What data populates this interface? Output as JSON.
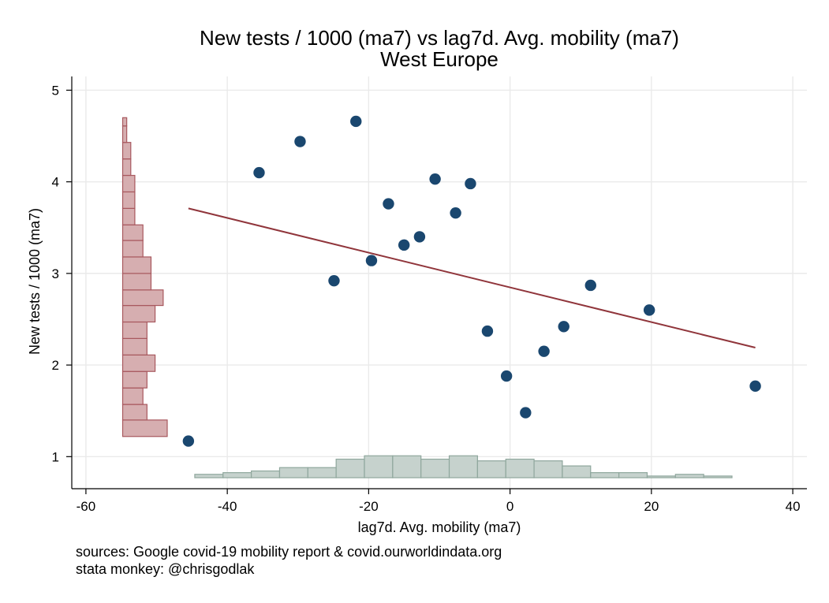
{
  "chart_data": {
    "type": "scatter",
    "title": "New tests / 1000 (ma7) vs lag7d. Avg. mobility (ma7)",
    "subtitle": "West Europe",
    "xlabel": "lag7d. Avg. mobility (ma7)",
    "ylabel": "New tests / 1000 (ma7)",
    "xlim": [
      -62,
      42
    ],
    "ylim": [
      0.65,
      5.15
    ],
    "xticks": [
      -60,
      -40,
      -20,
      0,
      20,
      40
    ],
    "yticks": [
      1,
      2,
      3,
      4,
      5
    ],
    "grid": true,
    "legend": "none",
    "points": {
      "x": [
        -45.5,
        -35.5,
        -29.7,
        -24.9,
        -21.8,
        -19.6,
        -17.2,
        -15.0,
        -12.8,
        -10.6,
        -7.7,
        -5.6,
        -3.2,
        -0.5,
        2.2,
        4.8,
        7.6,
        11.4,
        19.7,
        34.7
      ],
      "y": [
        1.17,
        4.1,
        4.44,
        2.92,
        4.66,
        3.14,
        3.76,
        3.31,
        3.4,
        4.03,
        3.66,
        3.98,
        2.37,
        1.88,
        1.48,
        2.15,
        2.42,
        2.87,
        2.6,
        1.77
      ]
    },
    "fit_line": {
      "x": [
        -45.5,
        34.7
      ],
      "y": [
        3.71,
        2.19
      ]
    },
    "x_histogram": {
      "bin_edges": [
        -44.6,
        -40.6,
        -36.6,
        -32.6,
        -28.6,
        -24.6,
        -20.6,
        -16.6,
        -12.6,
        -8.6,
        -4.6,
        -0.6,
        3.4,
        7.4,
        11.4,
        15.4,
        19.4,
        23.4,
        27.4,
        31.4
      ],
      "heights": [
        2,
        3,
        4,
        6,
        6,
        11,
        13,
        13,
        11,
        13,
        10,
        11,
        10,
        7,
        3,
        3,
        1,
        2,
        1
      ],
      "base_y": 0.77,
      "height_per_unit_y": 0.0184
    },
    "y_histogram": {
      "bin_edges": [
        1.22,
        1.4,
        1.57,
        1.75,
        1.93,
        2.11,
        2.29,
        2.47,
        2.65,
        2.82,
        3.0,
        3.18,
        3.36,
        3.53,
        3.71,
        3.89,
        4.07,
        4.25,
        4.43,
        4.61,
        4.7
      ],
      "heights": [
        11,
        6,
        5,
        6,
        8,
        6,
        6,
        8,
        10,
        7,
        7,
        5,
        5,
        3,
        3,
        3,
        2,
        2,
        1,
        1
      ],
      "base_x": -54.8,
      "width_per_unit_x": 0.573
    },
    "colors": {
      "points": "#1a476f",
      "fit_line": "#90353b",
      "x_hist_fill": "#c6d2cd",
      "x_hist_stroke": "#8fa79d",
      "y_hist_fill": "#d6aeb0",
      "y_hist_stroke": "#a8585e",
      "grid": "#eaeaea"
    }
  },
  "notes": {
    "sources": "sources: Google covid-19 mobility report & covid.ourworldindata.org",
    "credit": "stata monkey: @chrisgodlak"
  }
}
